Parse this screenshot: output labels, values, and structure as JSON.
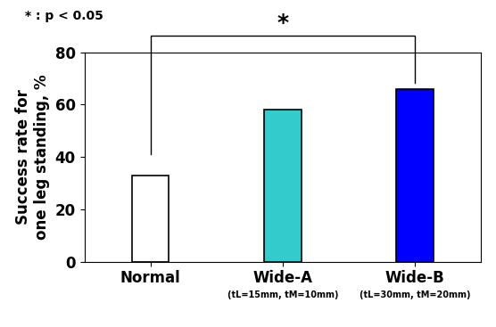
{
  "chart_data": {
    "type": "bar",
    "y_label": "Success rate for\none leg standing, %",
    "categories": [
      "Normal",
      "Wide-A",
      "Wide-B"
    ],
    "values": [
      33,
      58,
      66
    ],
    "colors": [
      "#ffffff",
      "#33cccc",
      "#0000ff"
    ],
    "category_notes": [
      {
        "category": "Wide-A",
        "text": "(tL=15mm, tM=10mm)"
      },
      {
        "category": "Wide-B",
        "text": "(tL=30mm, tM=20mm)"
      }
    ],
    "note": "* : p < 0.05",
    "significance": {
      "from": "Normal",
      "to": "Wide-B",
      "label": "*"
    },
    "ylim": [
      0,
      80
    ],
    "yticks": [
      0,
      20,
      40,
      60,
      80
    ],
    "grid": false
  }
}
